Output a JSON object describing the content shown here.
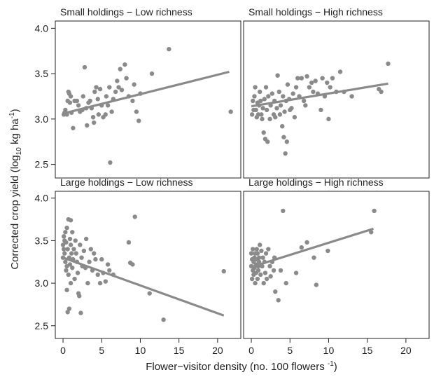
{
  "chart_data": {
    "type": "scatter",
    "xlabel": "Flower−visitor density (no. 100 flowers ",
    "xlabel_sup": "-1",
    "xlabel_close": ")",
    "ylabel": "Corrected crop yield (log",
    "ylabel_sub": "10",
    "ylabel_unit": " kg ha",
    "ylabel_sup": "-1",
    "ylabel_close": ")",
    "xlim": [
      -1,
      23
    ],
    "ylim": [
      2.35,
      4.08
    ],
    "xticks": [
      0,
      5,
      10,
      15,
      20
    ],
    "xtick_labels": [
      "0",
      "5",
      "10",
      "15",
      "20"
    ],
    "yticks": [
      2.5,
      3.0,
      3.5,
      4.0
    ],
    "ytick_labels": [
      "2.5",
      "3.0",
      "3.5",
      "4.0"
    ],
    "point_color": "#8a8a8a",
    "line_color": "#8a8a8a",
    "panels": [
      {
        "title": "Small holdings − Low richness",
        "fit": {
          "x0": 0.0,
          "y0": 3.06,
          "x1": 21.5,
          "y1": 3.52
        },
        "points": [
          [
            0.1,
            3.05
          ],
          [
            0.2,
            3.07
          ],
          [
            0.3,
            3.1
          ],
          [
            0.5,
            3.05
          ],
          [
            0.6,
            3.2
          ],
          [
            0.7,
            3.3
          ],
          [
            0.8,
            3.28
          ],
          [
            0.9,
            3.18
          ],
          [
            1.0,
            3.25
          ],
          [
            1.1,
            3.07
          ],
          [
            1.3,
            2.9
          ],
          [
            1.5,
            3.2
          ],
          [
            1.8,
            3.2
          ],
          [
            2.0,
            3.15
          ],
          [
            2.2,
            3.08
          ],
          [
            2.5,
            3.1
          ],
          [
            2.6,
            3.25
          ],
          [
            2.8,
            3.57
          ],
          [
            3.0,
            3.12
          ],
          [
            3.1,
            2.93
          ],
          [
            3.3,
            3.18
          ],
          [
            3.5,
            3.2
          ],
          [
            3.7,
            3.12
          ],
          [
            3.9,
            3.02
          ],
          [
            4.0,
            2.96
          ],
          [
            4.1,
            3.3
          ],
          [
            4.3,
            3.35
          ],
          [
            4.5,
            3.22
          ],
          [
            4.6,
            3.05
          ],
          [
            4.8,
            3.33
          ],
          [
            5.0,
            3.15
          ],
          [
            5.2,
            3.02
          ],
          [
            5.5,
            3.05
          ],
          [
            5.6,
            3.25
          ],
          [
            5.8,
            3.15
          ],
          [
            6.0,
            3.35
          ],
          [
            6.1,
            2.52
          ],
          [
            6.3,
            3.08
          ],
          [
            6.5,
            3.22
          ],
          [
            6.8,
            3.3
          ],
          [
            7.0,
            3.42
          ],
          [
            7.2,
            3.35
          ],
          [
            7.4,
            3.55
          ],
          [
            7.6,
            3.32
          ],
          [
            8.0,
            3.6
          ],
          [
            8.2,
            3.45
          ],
          [
            8.5,
            3.25
          ],
          [
            9.0,
            3.2
          ],
          [
            9.2,
            3.38
          ],
          [
            9.5,
            3.08
          ],
          [
            9.8,
            2.98
          ],
          [
            10.0,
            3.28
          ],
          [
            11.5,
            3.5
          ],
          [
            13.7,
            3.77
          ],
          [
            21.7,
            3.08
          ]
        ]
      },
      {
        "title": "Small holdings − High richness",
        "fit": {
          "x0": 0.0,
          "y0": 3.14,
          "x1": 17.7,
          "y1": 3.39
        },
        "points": [
          [
            0.1,
            3.05
          ],
          [
            0.2,
            3.2
          ],
          [
            0.3,
            3.1
          ],
          [
            0.4,
            3.25
          ],
          [
            0.5,
            3.35
          ],
          [
            0.6,
            3.1
          ],
          [
            0.7,
            3.02
          ],
          [
            0.8,
            3.18
          ],
          [
            0.9,
            3.05
          ],
          [
            1.0,
            3.15
          ],
          [
            1.1,
            3.3
          ],
          [
            1.2,
            3.2
          ],
          [
            1.3,
            3.05
          ],
          [
            1.4,
            3.0
          ],
          [
            1.5,
            3.12
          ],
          [
            1.6,
            2.85
          ],
          [
            1.7,
            3.22
          ],
          [
            1.8,
            2.78
          ],
          [
            1.9,
            3.35
          ],
          [
            2.0,
            3.1
          ],
          [
            2.1,
            2.75
          ],
          [
            2.2,
            3.25
          ],
          [
            2.4,
            3.0
          ],
          [
            2.5,
            3.15
          ],
          [
            2.7,
            3.28
          ],
          [
            2.9,
            3.05
          ],
          [
            3.0,
            3.2
          ],
          [
            3.1,
            3.02
          ],
          [
            3.3,
            3.12
          ],
          [
            3.4,
            3.48
          ],
          [
            3.6,
            3.3
          ],
          [
            3.7,
            3.05
          ],
          [
            3.8,
            3.15
          ],
          [
            4.0,
            2.92
          ],
          [
            4.1,
            3.25
          ],
          [
            4.2,
            2.8
          ],
          [
            4.3,
            3.08
          ],
          [
            4.4,
            2.62
          ],
          [
            4.5,
            3.2
          ],
          [
            4.6,
            2.75
          ],
          [
            4.7,
            3.38
          ],
          [
            4.9,
            3.22
          ],
          [
            5.0,
            3.1
          ],
          [
            5.2,
            3.12
          ],
          [
            5.4,
            3.28
          ],
          [
            5.6,
            3.02
          ],
          [
            5.8,
            3.35
          ],
          [
            6.0,
            3.45
          ],
          [
            6.2,
            3.25
          ],
          [
            6.5,
            3.45
          ],
          [
            6.8,
            3.2
          ],
          [
            7.0,
            3.15
          ],
          [
            7.2,
            3.47
          ],
          [
            7.5,
            3.35
          ],
          [
            7.8,
            3.4
          ],
          [
            8.0,
            3.3
          ],
          [
            8.3,
            3.42
          ],
          [
            8.6,
            3.28
          ],
          [
            9.0,
            3.1
          ],
          [
            9.2,
            3.45
          ],
          [
            9.5,
            3.25
          ],
          [
            9.8,
            3.4
          ],
          [
            10.0,
            3.0
          ],
          [
            10.2,
            3.35
          ],
          [
            10.5,
            3.45
          ],
          [
            11.0,
            3.3
          ],
          [
            11.5,
            3.52
          ],
          [
            12.0,
            3.3
          ],
          [
            13.0,
            3.25
          ],
          [
            16.5,
            3.33
          ],
          [
            16.8,
            3.3
          ],
          [
            17.7,
            3.61
          ]
        ]
      },
      {
        "title": "Large holdings − Low richness",
        "fit": {
          "x0": 0.0,
          "y0": 3.3,
          "x1": 20.8,
          "y1": 2.62
        },
        "points": [
          [
            0.0,
            3.3
          ],
          [
            0.0,
            3.45
          ],
          [
            0.1,
            3.4
          ],
          [
            0.1,
            3.55
          ],
          [
            0.2,
            3.5
          ],
          [
            0.2,
            3.35
          ],
          [
            0.3,
            3.25
          ],
          [
            0.3,
            3.6
          ],
          [
            0.4,
            3.15
          ],
          [
            0.4,
            3.48
          ],
          [
            0.5,
            3.65
          ],
          [
            0.5,
            3.2
          ],
          [
            0.5,
            2.92
          ],
          [
            0.6,
            3.4
          ],
          [
            0.6,
            2.66
          ],
          [
            0.7,
            3.75
          ],
          [
            0.7,
            3.1
          ],
          [
            0.8,
            3.3
          ],
          [
            0.8,
            2.7
          ],
          [
            0.9,
            3.52
          ],
          [
            0.9,
            3.22
          ],
          [
            1.0,
            3.74
          ],
          [
            1.0,
            3.45
          ],
          [
            1.0,
            3.0
          ],
          [
            1.1,
            3.35
          ],
          [
            1.2,
            3.6
          ],
          [
            1.2,
            3.18
          ],
          [
            1.3,
            3.28
          ],
          [
            1.4,
            3.4
          ],
          [
            1.5,
            3.05
          ],
          [
            1.6,
            3.5
          ],
          [
            1.7,
            3.35
          ],
          [
            1.8,
            3.25
          ],
          [
            1.9,
            3.12
          ],
          [
            2.0,
            2.88
          ],
          [
            2.1,
            2.85
          ],
          [
            2.2,
            3.45
          ],
          [
            2.3,
            2.65
          ],
          [
            2.4,
            3.3
          ],
          [
            2.5,
            3.2
          ],
          [
            2.7,
            3.38
          ],
          [
            2.9,
            3.18
          ],
          [
            3.0,
            3.52
          ],
          [
            3.2,
            3.0
          ],
          [
            3.4,
            3.25
          ],
          [
            3.6,
            3.4
          ],
          [
            3.8,
            3.15
          ],
          [
            4.0,
            3.35
          ],
          [
            4.2,
            3.28
          ],
          [
            4.5,
            3.1
          ],
          [
            4.8,
            3.0
          ],
          [
            5.0,
            3.28
          ],
          [
            5.2,
            3.12
          ],
          [
            5.5,
            3.02
          ],
          [
            5.8,
            3.22
          ],
          [
            6.0,
            3.15
          ],
          [
            6.5,
            3.1
          ],
          [
            8.5,
            3.48
          ],
          [
            8.7,
            3.24
          ],
          [
            9.0,
            3.22
          ],
          [
            9.3,
            3.78
          ],
          [
            11.2,
            2.88
          ],
          [
            13.0,
            2.57
          ],
          [
            20.8,
            3.14
          ]
        ]
      },
      {
        "title": "Large holdings − High richness",
        "fit": {
          "x0": 0.0,
          "y0": 3.19,
          "x1": 15.8,
          "y1": 3.64
        },
        "points": [
          [
            0.0,
            3.35
          ],
          [
            0.0,
            3.2
          ],
          [
            0.1,
            3.05
          ],
          [
            0.1,
            3.28
          ],
          [
            0.2,
            3.15
          ],
          [
            0.2,
            3.4
          ],
          [
            0.3,
            3.25
          ],
          [
            0.3,
            3.1
          ],
          [
            0.4,
            3.3
          ],
          [
            0.4,
            3.18
          ],
          [
            0.5,
            3.35
          ],
          [
            0.5,
            3.0
          ],
          [
            0.6,
            3.22
          ],
          [
            0.6,
            3.12
          ],
          [
            0.7,
            3.4
          ],
          [
            0.7,
            3.28
          ],
          [
            0.8,
            3.05
          ],
          [
            0.8,
            3.35
          ],
          [
            0.9,
            3.2
          ],
          [
            0.9,
            3.15
          ],
          [
            1.0,
            3.3
          ],
          [
            1.0,
            3.25
          ],
          [
            1.1,
            3.45
          ],
          [
            1.2,
            3.1
          ],
          [
            1.3,
            3.38
          ],
          [
            1.4,
            3.2
          ],
          [
            1.5,
            3.3
          ],
          [
            1.6,
            3.0
          ],
          [
            1.7,
            3.25
          ],
          [
            1.8,
            3.12
          ],
          [
            1.9,
            3.35
          ],
          [
            2.0,
            3.05
          ],
          [
            2.2,
            3.4
          ],
          [
            2.4,
            3.2
          ],
          [
            2.5,
            3.08
          ],
          [
            2.7,
            3.25
          ],
          [
            2.9,
            3.15
          ],
          [
            3.0,
            3.3
          ],
          [
            3.1,
            2.9
          ],
          [
            3.5,
            2.8
          ],
          [
            3.8,
            3.15
          ],
          [
            4.1,
            3.85
          ],
          [
            4.5,
            3.0
          ],
          [
            5.8,
            3.12
          ],
          [
            6.5,
            3.42
          ],
          [
            7.2,
            3.48
          ],
          [
            8.1,
            3.3
          ],
          [
            8.4,
            2.98
          ],
          [
            9.9,
            3.38
          ],
          [
            15.5,
            3.6
          ],
          [
            15.9,
            3.85
          ]
        ]
      }
    ]
  }
}
